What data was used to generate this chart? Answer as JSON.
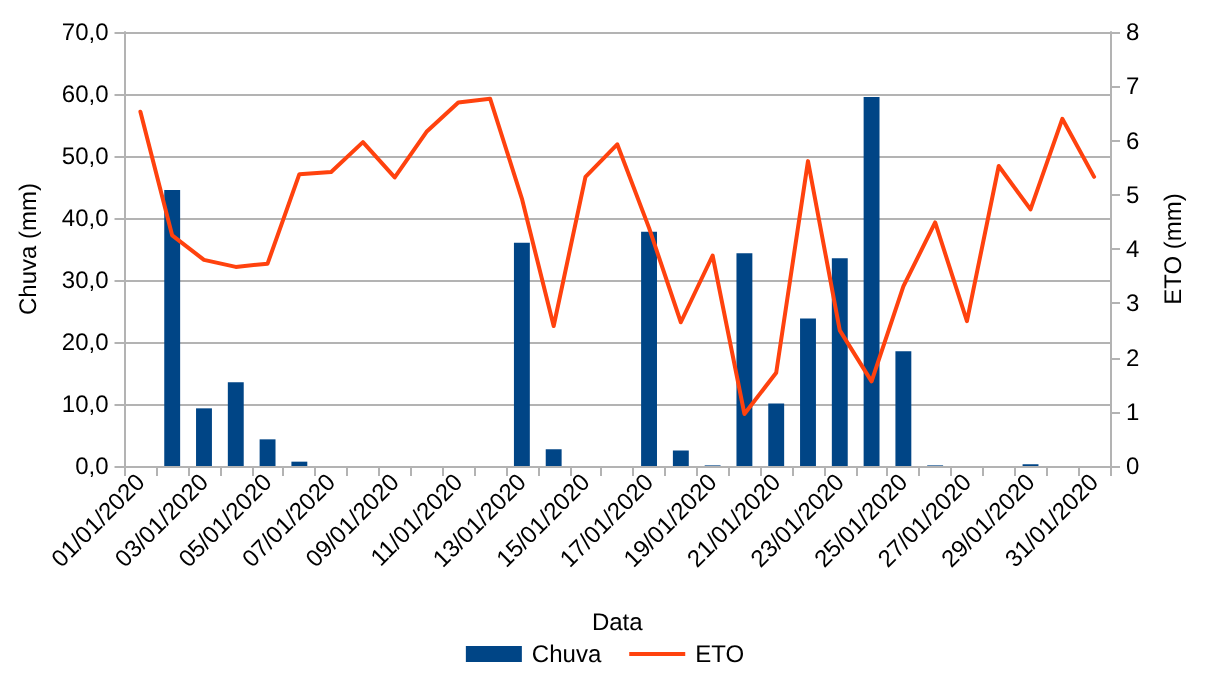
{
  "chart_data": {
    "type": "bar",
    "xlabel": "Data",
    "ylabel": "Chuva (mm)",
    "y2label": "ETO (mm)",
    "categories": [
      "01/01/2020",
      null,
      "03/01/2020",
      null,
      "05/01/2020",
      null,
      "07/01/2020",
      null,
      "09/01/2020",
      null,
      "11/01/2020",
      null,
      "13/01/2020",
      null,
      "15/01/2020",
      null,
      "17/01/2020",
      null,
      "19/01/2020",
      null,
      "21/01/2020",
      null,
      "23/01/2020",
      null,
      "25/01/2020",
      null,
      "27/01/2020",
      null,
      "29/01/2020",
      null,
      "31/01/2020"
    ],
    "series": [
      {
        "name": "Chuva",
        "color": "#004586",
        "values": [
          0,
          44.5,
          9.3,
          13.5,
          4.3,
          0.7,
          0,
          0,
          0,
          0,
          0,
          0,
          36.0,
          2.7,
          0,
          0,
          37.8,
          2.5,
          0.1,
          34.3,
          10.1,
          23.8,
          33.5,
          59.5,
          18.5,
          0.1,
          0,
          0,
          0.3,
          0,
          0
        ]
      },
      {
        "name": "ETO",
        "type": "line",
        "axis": "y2",
        "color": "#ff420e",
        "values": [
          6.53,
          4.25,
          3.8,
          3.67,
          3.73,
          5.38,
          5.42,
          5.97,
          5.32,
          6.16,
          6.7,
          6.77,
          4.93,
          2.58,
          5.33,
          5.93,
          4.39,
          2.65,
          3.88,
          0.96,
          1.72,
          5.62,
          2.5,
          1.56,
          3.31,
          4.49,
          2.67,
          5.53,
          4.73,
          6.4,
          5.33
        ]
      }
    ],
    "ylim": [
      0,
      70
    ],
    "yticks": [
      {
        "value": 0,
        "label": "0,0"
      },
      {
        "value": 10,
        "label": "10,0"
      },
      {
        "value": 20,
        "label": "20,0"
      },
      {
        "value": 30,
        "label": "30,0"
      },
      {
        "value": 40,
        "label": "40,0"
      },
      {
        "value": 50,
        "label": "50,0"
      },
      {
        "value": 60,
        "label": "60,0"
      },
      {
        "value": 70,
        "label": "70,0"
      }
    ],
    "y2lim": [
      0,
      8
    ],
    "y2ticks": [
      0,
      1,
      2,
      3,
      4,
      5,
      6,
      7,
      8
    ],
    "grid": "y",
    "legend": "bottom",
    "marker": "none",
    "line_style": "solid"
  }
}
